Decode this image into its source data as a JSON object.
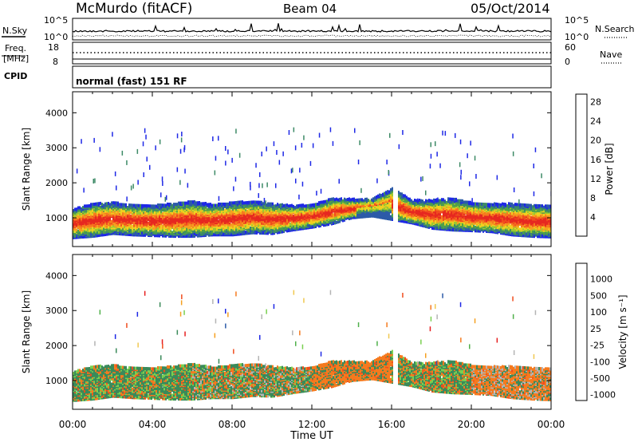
{
  "header": {
    "station": "McMurdo (fitACF)",
    "beam": "Beam 04",
    "date": "05/Oct/2014"
  },
  "strip": {
    "nsky_label": "N.Sky",
    "nsearch_label": "N.Search",
    "freq_label_1": "Freq.",
    "freq_label_2": "[MHz]",
    "nave_label": "Nave",
    "cpid_label": "CPID",
    "cpid_value": "normal (fast) 151 RF",
    "noise_ticks_left": [
      "10^5",
      "10^0"
    ],
    "noise_ticks_right": [
      "10^5",
      "10^0"
    ],
    "freq_ticks": [
      "18",
      "8"
    ],
    "nave_ticks": [
      "60",
      "0"
    ]
  },
  "colors": {
    "power": [
      "#1e28e6",
      "#2c5aa8",
      "#3d8a66",
      "#4fa04a",
      "#9cc830",
      "#f0d020",
      "#f5a020",
      "#f57a1e",
      "#f04c1e",
      "#e62820"
    ],
    "velocity": [
      "#e61e1e",
      "#f04c1e",
      "#f57a1e",
      "#f5a020",
      "#f0c850",
      "#b4b4b4",
      "#7ad050",
      "#4fb04a",
      "#3a8a5a",
      "#2c5aa8",
      "#1e28e6"
    ]
  },
  "chart_data": [
    {
      "type": "heatmap",
      "name": "power",
      "xlabel": "",
      "ylabel": "Slant Range [km]",
      "xlim": [
        0,
        24
      ],
      "ylim": [
        180,
        4600
      ],
      "y_ticks": [
        "1000",
        "2000",
        "3000",
        "4000"
      ],
      "x_ticks": [
        "00:00",
        "04:00",
        "08:00",
        "12:00",
        "16:00",
        "20:00",
        "00:00"
      ],
      "colorbar_label": "Power [dB]",
      "colorbar_ticks": [
        "4",
        "8",
        "12",
        "16",
        "20",
        "24",
        "28"
      ],
      "echo_band": {
        "time_hours": [
          0,
          1,
          2,
          3,
          4,
          5,
          6,
          7,
          8,
          9,
          10,
          11,
          12,
          13,
          14,
          15,
          16,
          17,
          18,
          19,
          20,
          21,
          22,
          23,
          24
        ],
        "bottom_km": [
          480,
          520,
          600,
          560,
          540,
          520,
          520,
          560,
          560,
          620,
          600,
          700,
          780,
          880,
          1050,
          1100,
          1000,
          900,
          750,
          700,
          680,
          650,
          560,
          520,
          500
        ],
        "top_km": [
          1300,
          1450,
          1480,
          1420,
          1400,
          1450,
          1520,
          1420,
          1480,
          1520,
          1450,
          1400,
          1420,
          1600,
          1580,
          1580,
          1900,
          1550,
          1550,
          1600,
          1480,
          1450,
          1450,
          1400,
          1400
        ]
      }
    },
    {
      "type": "heatmap",
      "name": "velocity",
      "xlabel": "Time UT",
      "ylabel": "Slant Range [km]",
      "xlim": [
        0,
        24
      ],
      "ylim": [
        180,
        4600
      ],
      "y_ticks": [
        "1000",
        "2000",
        "3000",
        "4000"
      ],
      "x_ticks": [
        "00:00",
        "04:00",
        "08:00",
        "12:00",
        "16:00",
        "20:00",
        "00:00"
      ],
      "colorbar_label": "Velocity [m s⁻¹]",
      "colorbar_ticks": [
        "1000",
        "500",
        "100",
        "25",
        "-25",
        "-100",
        "-500",
        "-1000"
      ]
    }
  ]
}
